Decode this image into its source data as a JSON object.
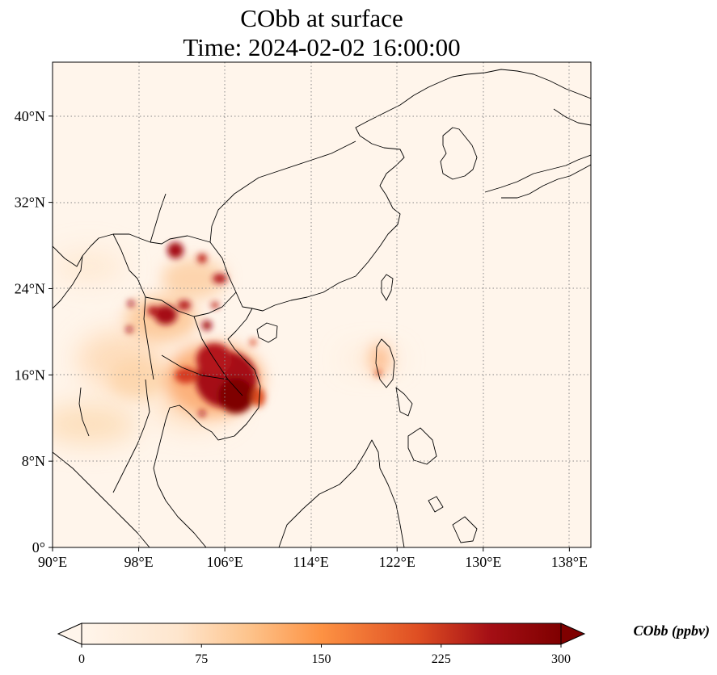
{
  "map": {
    "title_line1": "CObb at surface",
    "title_line2": "Time: 2024-02-02 16:00:00",
    "lon_ticks": [
      {
        "value": 90,
        "label": "90°E"
      },
      {
        "value": 98,
        "label": "98°E"
      },
      {
        "value": 106,
        "label": "106°E"
      },
      {
        "value": 114,
        "label": "114°E"
      },
      {
        "value": 122,
        "label": "122°E"
      },
      {
        "value": 130,
        "label": "130°E"
      },
      {
        "value": 138,
        "label": "138°E"
      }
    ],
    "lat_ticks": [
      {
        "value": 0,
        "label": "0°"
      },
      {
        "value": 8,
        "label": "8°N"
      },
      {
        "value": 16,
        "label": "16°N"
      },
      {
        "value": 24,
        "label": "24°N"
      },
      {
        "value": 32,
        "label": "32°N"
      },
      {
        "value": 40,
        "label": "40°N"
      }
    ],
    "lon_range": [
      90,
      140
    ],
    "lat_range": [
      0,
      45
    ],
    "gridlines": true,
    "colormap": [
      "#fff5eb",
      "#fdd7a6",
      "#fd9243",
      "#df4f23",
      "#a50f15",
      "#7f0000"
    ],
    "land_color": "#fff4e6",
    "coastline_color": "#000000",
    "gridline_color": "#888888"
  },
  "colorbar": {
    "label": "CObb (ppbv)",
    "ticks": [
      {
        "value": 0,
        "label": "0"
      },
      {
        "value": 75,
        "label": "75"
      },
      {
        "value": 150,
        "label": "150"
      },
      {
        "value": 225,
        "label": "225"
      },
      {
        "value": 300,
        "label": "300"
      }
    ],
    "range": [
      0,
      300
    ],
    "extend": "both"
  }
}
